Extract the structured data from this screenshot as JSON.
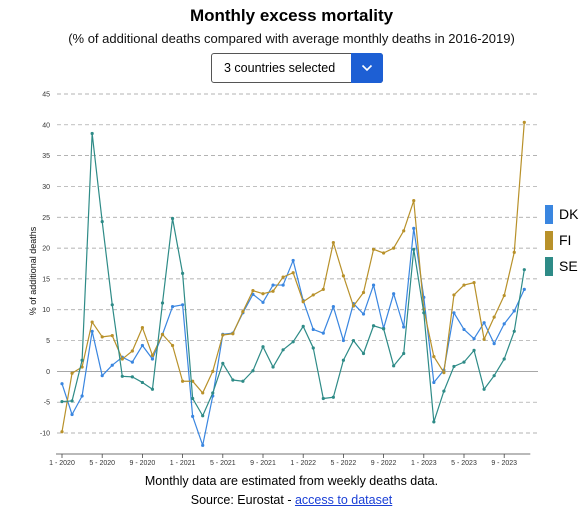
{
  "header": {
    "title": "Monthly excess mortality",
    "subtitle": "(% of additional deaths compared with average monthly deaths in 2016-2019)"
  },
  "selector": {
    "label": "3 countries selected"
  },
  "footer": {
    "note": "Monthly data are estimated from weekly deaths data.",
    "source_prefix": "Source: Eurostat - ",
    "source_link": "access to dataset"
  },
  "chart_data": {
    "type": "line",
    "title": "Monthly excess mortality",
    "ylabel": "% of additional deaths",
    "xlabel": "",
    "ylim": [
      -10,
      45
    ],
    "yticks": [
      -10,
      -5,
      0,
      5,
      10,
      15,
      20,
      25,
      30,
      35,
      40,
      45
    ],
    "xtick_labels": [
      "1 - 2020",
      "5 - 2020",
      "9 - 2020",
      "1 - 2021",
      "5 - 2021",
      "9 - 2021",
      "1 - 2022",
      "5 - 2022",
      "9 - 2022",
      "1 - 2023",
      "5 - 2023",
      "9 - 2023"
    ],
    "xtick_months": [
      0,
      4,
      8,
      12,
      16,
      20,
      24,
      28,
      32,
      36,
      40,
      44
    ],
    "grid": "horizontal dashed",
    "legend_position": "right",
    "months_start": "2020-01",
    "series": [
      {
        "name": "DK",
        "color": "#3a86e0",
        "values": [
          -2.0,
          -7.0,
          -4.0,
          6.5,
          -0.7,
          1.0,
          2.3,
          1.5,
          4.2,
          2.0,
          6.0,
          10.5,
          10.8,
          -7.3,
          -12.0,
          -4.0,
          6.0,
          6.2,
          9.5,
          12.5,
          11.2,
          14.0,
          14.0,
          18.0,
          11.5,
          6.8,
          6.2,
          10.5,
          5.0,
          11.0,
          9.3,
          14.0,
          7.0,
          12.6,
          7.2,
          23.2,
          12.0,
          -1.8,
          0.2,
          9.5,
          6.8,
          5.3,
          7.9,
          4.5,
          7.7,
          9.8,
          13.3
        ]
      },
      {
        "name": "FI",
        "color": "#b8912a",
        "values": [
          -9.8,
          -0.3,
          0.7,
          8.0,
          5.6,
          5.8,
          2.0,
          3.3,
          7.1,
          2.6,
          6.0,
          4.2,
          -1.6,
          -1.6,
          -3.5,
          0.0,
          5.9,
          6.1,
          9.7,
          13.1,
          12.6,
          13.0,
          15.3,
          16.0,
          11.3,
          12.4,
          13.3,
          20.9,
          15.5,
          10.6,
          12.8,
          19.8,
          19.2,
          20.0,
          22.8,
          27.7,
          10.1,
          2.4,
          -0.2,
          12.4,
          14.0,
          14.4,
          5.2,
          8.8,
          12.3,
          19.3,
          40.4
        ]
      },
      {
        "name": "SE",
        "color": "#2e8b87",
        "values": [
          -4.9,
          -4.8,
          1.8,
          38.6,
          24.3,
          10.8,
          -0.8,
          -0.9,
          -1.8,
          -2.9,
          11.1,
          24.8,
          15.9,
          -4.4,
          -7.2,
          -3.5,
          1.3,
          -1.4,
          -1.6,
          0.1,
          4.0,
          0.7,
          3.5,
          4.8,
          7.3,
          3.8,
          -4.4,
          -4.2,
          1.8,
          5.0,
          2.9,
          7.4,
          6.9,
          0.9,
          2.9,
          19.8,
          9.5,
          -8.2,
          -3.2,
          0.8,
          1.5,
          3.4,
          -2.9,
          -0.7,
          2.0,
          6.5,
          16.5
        ]
      }
    ]
  }
}
